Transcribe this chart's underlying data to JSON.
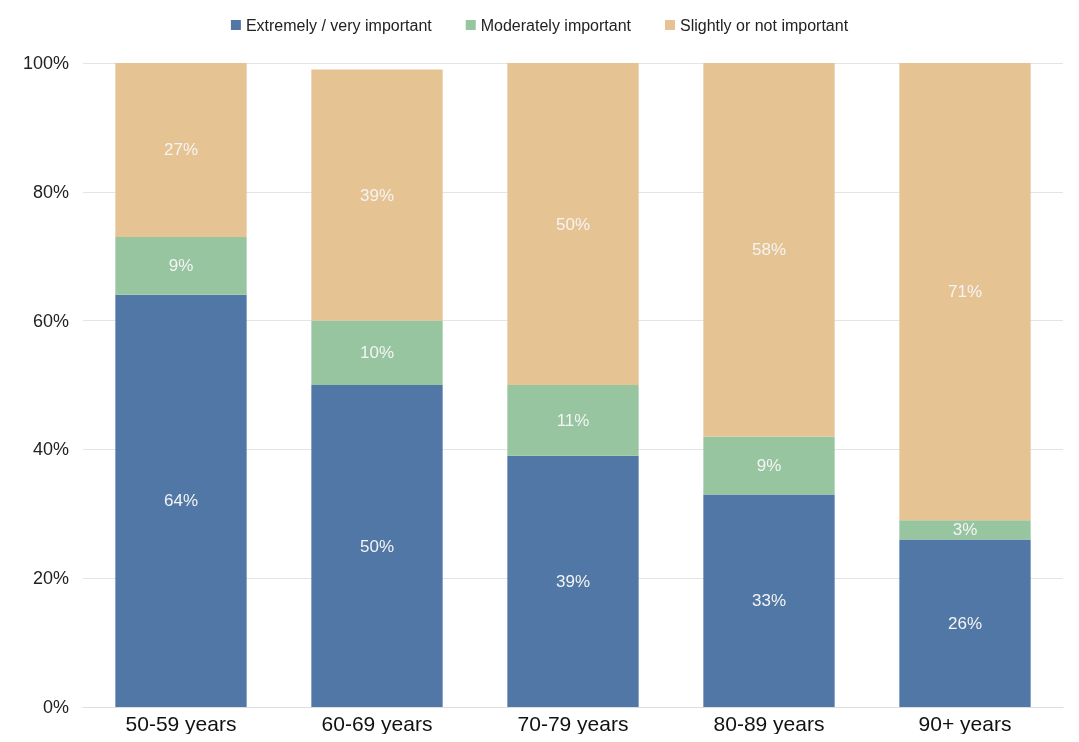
{
  "chart_data": {
    "type": "bar",
    "stacked": true,
    "categories": [
      "50-59 years",
      "60-69 years",
      "70-79 years",
      "80-89 years",
      "90+ years"
    ],
    "series": [
      {
        "name": "Extremely / very important",
        "color": "#5077a5",
        "values": [
          64,
          50,
          39,
          33,
          26
        ],
        "value_labels": [
          "64%",
          "50%",
          "39%",
          "33%",
          "26%"
        ]
      },
      {
        "name": "Moderately important",
        "color": "#97c5a0",
        "values": [
          9,
          10,
          11,
          9,
          3
        ],
        "value_labels": [
          "9%",
          "10%",
          "11%",
          "9%",
          "3%"
        ]
      },
      {
        "name": "Slightly or not important",
        "color": "#e6c393",
        "values": [
          27,
          39,
          50,
          58,
          71
        ],
        "value_labels": [
          "27%",
          "39%",
          "50%",
          "58%",
          "71%"
        ]
      }
    ],
    "ylim": [
      0,
      100
    ],
    "yticks": [
      {
        "value": 0,
        "label": "0%"
      },
      {
        "value": 20,
        "label": "20%"
      },
      {
        "value": 40,
        "label": "40%"
      },
      {
        "value": 60,
        "label": "60%"
      },
      {
        "value": 80,
        "label": "80%"
      },
      {
        "value": 100,
        "label": "100%"
      }
    ],
    "grid": "y",
    "legend": "top"
  }
}
